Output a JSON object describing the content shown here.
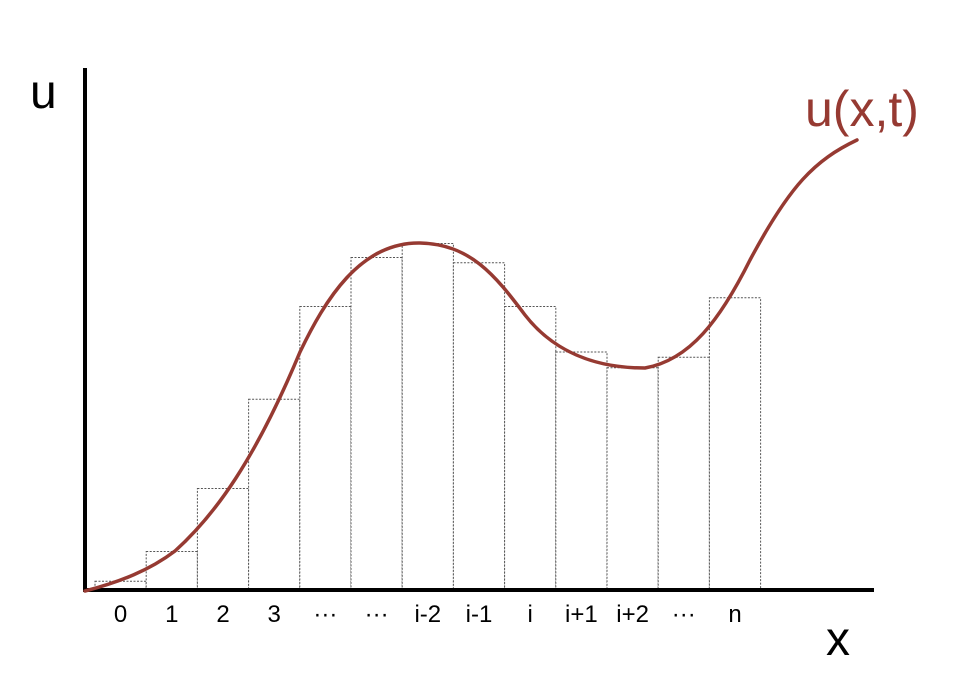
{
  "axes": {
    "y_label": "u",
    "x_label": "x"
  },
  "curve": {
    "label": "u(x,t)",
    "color": "#963a32"
  },
  "cells": [
    {
      "label": "0",
      "height": 0.025
    },
    {
      "label": "1",
      "height": 0.11
    },
    {
      "label": "2",
      "height": 0.29
    },
    {
      "label": "3",
      "height": 0.545
    },
    {
      "label": "···",
      "height": 0.81
    },
    {
      "label": "···",
      "height": 0.95
    },
    {
      "label": "i-2",
      "height": 0.99
    },
    {
      "label": "i-1",
      "height": 0.935
    },
    {
      "label": "i",
      "height": 0.81
    },
    {
      "label": "i+1",
      "height": 0.68
    },
    {
      "label": "i+2",
      "height": 0.635
    },
    {
      "label": "···",
      "height": 0.665
    },
    {
      "label": "n",
      "height": 0.835
    }
  ],
  "colors": {
    "axis": "#000000",
    "bar_outline": "#555555"
  }
}
